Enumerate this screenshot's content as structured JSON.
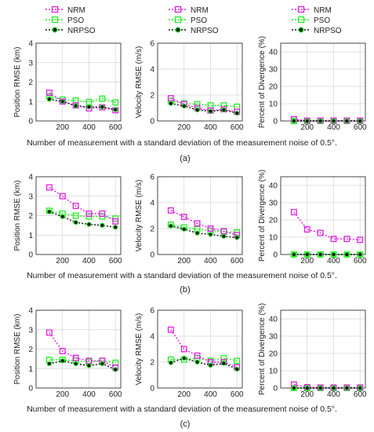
{
  "figure": {
    "xlabel": "Number of measurement with a standard deviation of the measurement noise of 0.5°.",
    "legend": [
      "NRM",
      "PSO",
      "NRPSO"
    ],
    "colors": {
      "NRM": "#e020e0",
      "PSO": "#22ee22",
      "NRPSO": "#111111"
    },
    "panel_labels": [
      "(a)",
      "(b)",
      "(c)"
    ]
  },
  "chart_data": [
    {
      "type": "line",
      "group": "(a)",
      "ylabel": "Position RMSE (km)",
      "x": [
        100,
        200,
        300,
        400,
        500,
        600
      ],
      "xlim": [
        0,
        640
      ],
      "ylim": [
        0,
        4
      ],
      "xticks": [
        "200",
        "400",
        "600"
      ],
      "yticks": [
        "0",
        "1",
        "2",
        "3",
        "4"
      ],
      "grid": true,
      "series": [
        {
          "name": "NRM",
          "values": [
            1.45,
            1.0,
            0.8,
            0.65,
            0.7,
            0.55
          ]
        },
        {
          "name": "PSO",
          "values": [
            1.25,
            1.1,
            1.05,
            0.98,
            1.15,
            0.95
          ]
        },
        {
          "name": "NRPSO",
          "values": [
            1.12,
            1.0,
            0.78,
            0.72,
            0.72,
            0.58
          ]
        }
      ]
    },
    {
      "type": "line",
      "group": "(a)",
      "ylabel": "Velocity RMSE (m/s)",
      "x": [
        100,
        200,
        300,
        400,
        500,
        600
      ],
      "xlim": [
        0,
        640
      ],
      "ylim": [
        0,
        6
      ],
      "xticks": [
        "200",
        "400",
        "600"
      ],
      "yticks": [
        "0",
        "2",
        "4",
        "6"
      ],
      "grid": true,
      "series": [
        {
          "name": "NRM",
          "values": [
            1.75,
            1.3,
            1.0,
            0.8,
            0.9,
            0.7
          ]
        },
        {
          "name": "PSO",
          "values": [
            1.55,
            1.35,
            1.3,
            1.2,
            1.2,
            1.1
          ]
        },
        {
          "name": "NRPSO",
          "values": [
            1.35,
            1.15,
            0.85,
            0.75,
            0.85,
            0.6
          ]
        }
      ]
    },
    {
      "type": "line",
      "group": "(a)",
      "ylabel": "Percent of Divergence (%)",
      "x": [
        100,
        200,
        300,
        400,
        500,
        600
      ],
      "xlim": [
        0,
        640
      ],
      "ylim": [
        0,
        45
      ],
      "xticks": [
        "200",
        "400",
        "600"
      ],
      "yticks": [
        "0",
        "10",
        "20",
        "30",
        "40"
      ],
      "grid": true,
      "series": [
        {
          "name": "NRM",
          "values": [
            1.0,
            0.2,
            0.2,
            0.2,
            0.2,
            0.2
          ]
        },
        {
          "name": "PSO",
          "values": [
            0,
            0,
            0,
            0,
            0,
            0
          ]
        },
        {
          "name": "NRPSO",
          "values": [
            0,
            0,
            0,
            0,
            0,
            0
          ]
        }
      ]
    },
    {
      "type": "line",
      "group": "(b)",
      "ylabel": "Position RMSE (km)",
      "x": [
        100,
        200,
        300,
        400,
        500,
        600
      ],
      "xlim": [
        0,
        640
      ],
      "ylim": [
        0,
        4
      ],
      "xticks": [
        "200",
        "400",
        "600"
      ],
      "yticks": [
        "0",
        "1",
        "2",
        "3",
        "4"
      ],
      "grid": true,
      "series": [
        {
          "name": "NRM",
          "values": [
            3.45,
            3.0,
            2.5,
            2.1,
            2.1,
            1.7
          ]
        },
        {
          "name": "PSO",
          "values": [
            2.25,
            2.1,
            2.0,
            1.95,
            1.95,
            1.85
          ]
        },
        {
          "name": "NRPSO",
          "values": [
            2.2,
            1.95,
            1.65,
            1.55,
            1.5,
            1.4
          ]
        }
      ]
    },
    {
      "type": "line",
      "group": "(b)",
      "ylabel": "Velocity RMSE (m/s)",
      "x": [
        100,
        200,
        300,
        400,
        500,
        600
      ],
      "xlim": [
        0,
        640
      ],
      "ylim": [
        0,
        6
      ],
      "xticks": [
        "200",
        "400",
        "600"
      ],
      "yticks": [
        "0",
        "2",
        "4",
        "6"
      ],
      "grid": true,
      "series": [
        {
          "name": "NRM",
          "values": [
            3.4,
            2.9,
            2.4,
            2.0,
            1.8,
            1.5
          ]
        },
        {
          "name": "PSO",
          "values": [
            2.3,
            2.1,
            1.95,
            1.85,
            1.75,
            1.7
          ]
        },
        {
          "name": "NRPSO",
          "values": [
            2.2,
            1.95,
            1.65,
            1.55,
            1.4,
            1.3
          ]
        }
      ]
    },
    {
      "type": "line",
      "group": "(b)",
      "ylabel": "Percent of Divergence (%)",
      "x": [
        100,
        200,
        300,
        400,
        500,
        600
      ],
      "xlim": [
        0,
        640
      ],
      "ylim": [
        0,
        45
      ],
      "xticks": [
        "200",
        "400",
        "600"
      ],
      "yticks": [
        "0",
        "10",
        "20",
        "30",
        "40"
      ],
      "grid": true,
      "series": [
        {
          "name": "NRM",
          "values": [
            24.5,
            14.5,
            12.5,
            9.0,
            9.0,
            8.5
          ]
        },
        {
          "name": "PSO",
          "values": [
            0,
            0,
            0,
            0,
            0,
            0
          ]
        },
        {
          "name": "NRPSO",
          "values": [
            0,
            0,
            0,
            0,
            0,
            0
          ]
        }
      ]
    },
    {
      "type": "line",
      "group": "(c)",
      "ylabel": "Position RMSE (km)",
      "x": [
        100,
        200,
        300,
        400,
        500,
        600
      ],
      "xlim": [
        0,
        640
      ],
      "ylim": [
        0,
        4
      ],
      "xticks": [
        "200",
        "400",
        "600"
      ],
      "yticks": [
        "0",
        "1",
        "2",
        "3",
        "4"
      ],
      "grid": true,
      "series": [
        {
          "name": "NRM",
          "values": [
            2.85,
            1.9,
            1.55,
            1.4,
            1.4,
            1.05
          ]
        },
        {
          "name": "PSO",
          "values": [
            1.45,
            1.45,
            1.4,
            1.35,
            1.4,
            1.3
          ]
        },
        {
          "name": "NRPSO",
          "values": [
            1.25,
            1.4,
            1.25,
            1.15,
            1.25,
            0.95
          ]
        }
      ]
    },
    {
      "type": "line",
      "group": "(c)",
      "ylabel": "Velocity RMSE (m/s)",
      "x": [
        100,
        200,
        300,
        400,
        500,
        600
      ],
      "xlim": [
        0,
        640
      ],
      "ylim": [
        0,
        6
      ],
      "xticks": [
        "200",
        "400",
        "600"
      ],
      "yticks": [
        "0",
        "2",
        "4",
        "6"
      ],
      "grid": true,
      "series": [
        {
          "name": "NRM",
          "values": [
            4.5,
            3.0,
            2.5,
            2.0,
            2.0,
            1.6
          ]
        },
        {
          "name": "PSO",
          "values": [
            2.2,
            2.2,
            2.3,
            2.1,
            2.3,
            2.1
          ]
        },
        {
          "name": "NRPSO",
          "values": [
            1.95,
            2.3,
            2.0,
            1.75,
            1.9,
            1.45
          ]
        }
      ]
    },
    {
      "type": "line",
      "group": "(c)",
      "ylabel": "Percent of Divergence (%)",
      "x": [
        100,
        200,
        300,
        400,
        500,
        600
      ],
      "xlim": [
        0,
        640
      ],
      "ylim": [
        0,
        45
      ],
      "xticks": [
        "200",
        "400",
        "600"
      ],
      "yticks": [
        "0",
        "10",
        "20",
        "30",
        "40"
      ],
      "grid": true,
      "series": [
        {
          "name": "NRM",
          "values": [
            2.0,
            0.5,
            0.3,
            0.3,
            0.3,
            0.3
          ]
        },
        {
          "name": "PSO",
          "values": [
            0,
            0,
            0,
            0,
            0,
            0
          ]
        },
        {
          "name": "NRPSO",
          "values": [
            0,
            0,
            0,
            0,
            0,
            0
          ]
        }
      ]
    }
  ]
}
